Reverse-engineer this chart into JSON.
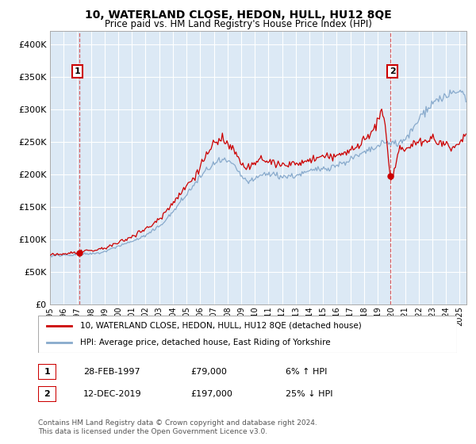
{
  "title": "10, WATERLAND CLOSE, HEDON, HULL, HU12 8QE",
  "subtitle": "Price paid vs. HM Land Registry's House Price Index (HPI)",
  "bg_color": "#dce9f5",
  "grid_color": "#ffffff",
  "sale1_date": 1997.16,
  "sale1_price": 79000,
  "sale1_label": "1",
  "sale2_date": 2019.92,
  "sale2_price": 197000,
  "sale2_label": "2",
  "legend_line1": "10, WATERLAND CLOSE, HEDON, HULL, HU12 8QE (detached house)",
  "legend_line2": "HPI: Average price, detached house, East Riding of Yorkshire",
  "info1_label": "1",
  "info1_date": "28-FEB-1997",
  "info1_price": "£79,000",
  "info1_hpi": "6% ↑ HPI",
  "info2_label": "2",
  "info2_date": "12-DEC-2019",
  "info2_price": "£197,000",
  "info2_hpi": "25% ↓ HPI",
  "footer": "Contains HM Land Registry data © Crown copyright and database right 2024.\nThis data is licensed under the Open Government Licence v3.0.",
  "red_color": "#cc0000",
  "blue_color": "#88aacc",
  "fig_bg": "#ffffff",
  "ylim_min": 0,
  "ylim_max": 420000,
  "xlim_min": 1995.0,
  "xlim_max": 2025.5
}
